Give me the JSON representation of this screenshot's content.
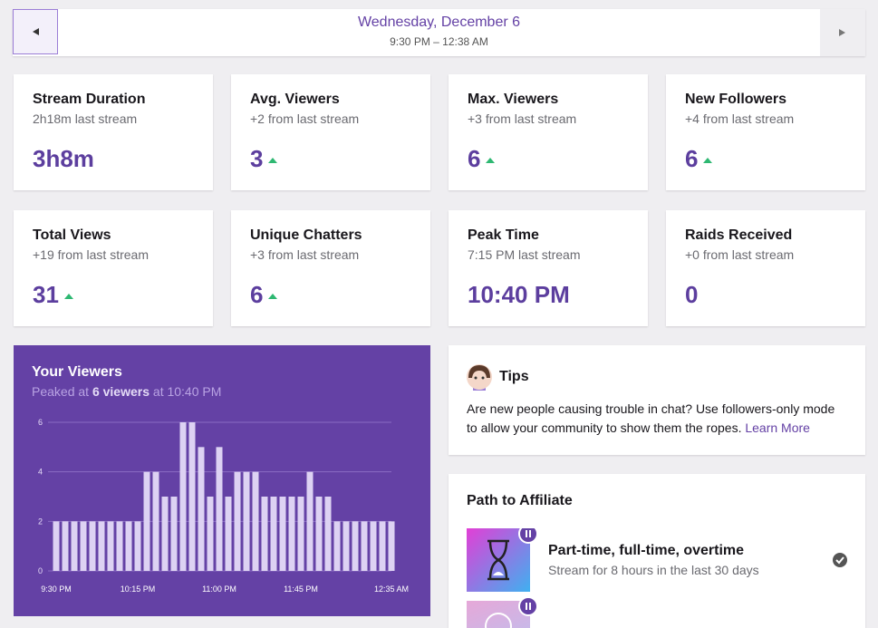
{
  "header": {
    "date": "Wednesday, December 6",
    "time_range": "9:30 PM – 12:38 AM"
  },
  "stats": [
    {
      "title": "Stream Duration",
      "subtitle": "2h18m last stream",
      "value": "3h8m"
    },
    {
      "title": "Avg. Viewers",
      "subtitle": "+2 from last stream",
      "value": "3",
      "trend": "up"
    },
    {
      "title": "Max. Viewers",
      "subtitle": "+3 from last stream",
      "value": "6",
      "trend": "up"
    },
    {
      "title": "New Followers",
      "subtitle": "+4 from last stream",
      "value": "6",
      "trend": "up"
    },
    {
      "title": "Total Views",
      "subtitle": "+19 from last stream",
      "value": "31",
      "trend": "up"
    },
    {
      "title": "Unique Chatters",
      "subtitle": "+3 from last stream",
      "value": "6",
      "trend": "up"
    },
    {
      "title": "Peak Time",
      "subtitle": "7:15 PM last stream",
      "value": "10:40 PM"
    },
    {
      "title": "Raids Received",
      "subtitle": "+0 from last stream",
      "value": "0"
    }
  ],
  "viewers_chart": {
    "type": "bar",
    "title": "Your Viewers",
    "subtitle": [
      "Peaked at",
      "6 viewers",
      "at 10:40 PM"
    ],
    "categories": [
      "9:30 PM",
      null,
      null,
      null,
      null,
      null,
      null,
      null,
      null,
      "10:15 PM",
      null,
      null,
      null,
      null,
      null,
      null,
      null,
      null,
      "11:00 PM",
      null,
      null,
      null,
      null,
      null,
      null,
      null,
      null,
      "11:45 PM",
      null,
      null,
      null,
      null,
      null,
      null,
      null,
      null,
      null,
      "12:35 AM"
    ],
    "values": [
      2,
      2,
      2,
      2,
      2,
      2,
      2,
      2,
      2,
      2,
      4,
      4,
      3,
      3,
      6,
      6,
      5,
      3,
      5,
      3,
      4,
      4,
      4,
      3,
      3,
      3,
      3,
      3,
      4,
      3,
      3,
      2,
      2,
      2,
      2,
      2,
      2,
      2
    ],
    "ylim": [
      0,
      6
    ],
    "yticks": [
      0,
      2,
      4,
      6
    ],
    "grid": true,
    "color": "#ddd2f3"
  },
  "tips": {
    "title": "Tips",
    "text": "Are new people causing trouble in chat? Use followers-only mode to allow your community to show them the ropes.",
    "link": "Learn More"
  },
  "affiliate": {
    "title": "Path to Affiliate",
    "items": [
      {
        "title": "Part-time, full-time, overtime",
        "description": "Stream for 8 hours in the last 30 days"
      }
    ]
  }
}
